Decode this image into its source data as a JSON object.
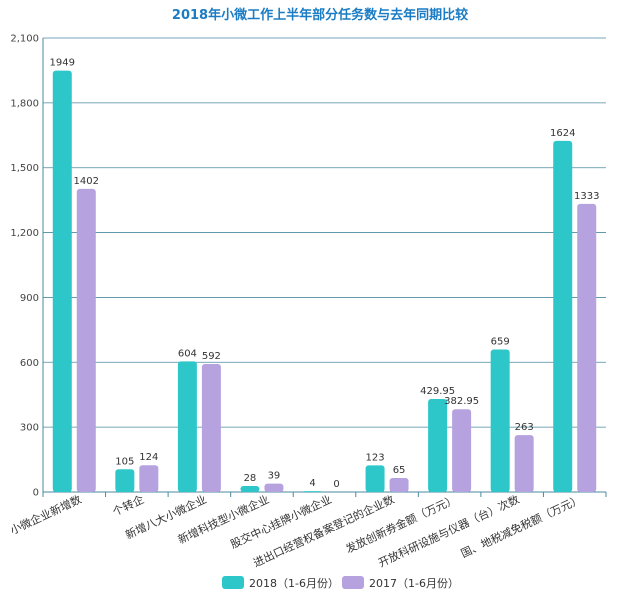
{
  "chart_data": {
    "type": "bar",
    "title": "2018年小微工作上半年部分任务数与去年同期比较",
    "xlabel": "",
    "ylabel": "",
    "ylim": [
      0,
      2100
    ],
    "yticks": [
      0,
      300,
      600,
      900,
      1200,
      1500,
      1800,
      2100
    ],
    "ytick_labels": [
      "0",
      "300",
      "600",
      "900",
      "1,200",
      "1,500",
      "1,800",
      "2,100"
    ],
    "grid": true,
    "legend_position": "bottom",
    "categories": [
      "小微企业新增数",
      "个转企",
      "新增八大小微企业",
      "新增科技型小微企业",
      "股交中心挂牌小微企业",
      "进出口经营权备案登记的企业数",
      "发放创新券金额（万元）",
      "开放科研设施与仪器（台）次数",
      "国、地税减免税额（万元）"
    ],
    "series": [
      {
        "name": "2018（1-6月份）",
        "color": "#2ec7c9",
        "values": [
          1949,
          105,
          604,
          28,
          4,
          123,
          429.95,
          659,
          1624
        ],
        "labels": [
          "1949",
          "105",
          "604",
          "28",
          "4",
          "123",
          "429.95",
          "659",
          "1624"
        ]
      },
      {
        "name": "2017（1-6月份）",
        "color": "#b6a2de",
        "values": [
          1402,
          124,
          592,
          39,
          0,
          65,
          382.95,
          263,
          1333
        ],
        "labels": [
          "1402",
          "124",
          "592",
          "39",
          "0",
          "65",
          "382.95",
          "263",
          "1333"
        ]
      }
    ]
  }
}
